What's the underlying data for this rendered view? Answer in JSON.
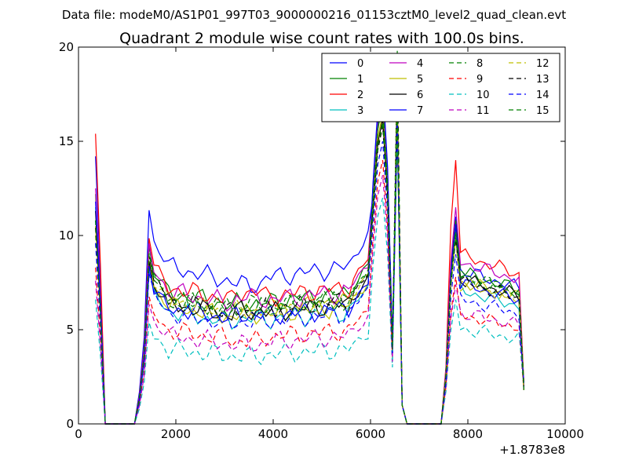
{
  "suptitle": "Data file: modeM0/AS1P01_997T03_9000000216_01153cztM0_level2_quad_clean.evt",
  "chart_data": {
    "type": "line",
    "title": "Quadrant 2 module wise count rates with 100.0s bins.",
    "xlabel": "",
    "ylabel": "",
    "xlim": [
      0,
      10000
    ],
    "ylim": [
      0,
      20
    ],
    "x_offset_label": "+1.8783e8",
    "xticks": [
      0,
      2000,
      4000,
      6000,
      8000,
      10000
    ],
    "xtick_labels": [
      "0",
      "2000",
      "4000",
      "6000",
      "8000",
      "10000"
    ],
    "yticks": [
      0,
      5,
      10,
      15,
      20
    ],
    "ytick_labels": [
      "0",
      "5",
      "10",
      "15",
      "20"
    ],
    "grid": false,
    "legend_position": "top-right",
    "x": [
      350,
      450,
      550,
      650,
      750,
      850,
      950,
      1050,
      1150,
      1250,
      1350,
      1450,
      1550,
      1650,
      1750,
      1850,
      1950,
      2050,
      2150,
      2250,
      2350,
      2450,
      2550,
      2650,
      2750,
      2850,
      2950,
      3050,
      3150,
      3250,
      3350,
      3450,
      3550,
      3650,
      3750,
      3850,
      3950,
      4050,
      4150,
      4250,
      4350,
      4450,
      4550,
      4650,
      4750,
      4850,
      4950,
      5050,
      5150,
      5250,
      5350,
      5450,
      5550,
      5650,
      5750,
      5850,
      5950,
      6050,
      6150,
      6250,
      6350,
      6450,
      6550,
      6650,
      6750,
      6850,
      6950,
      7050,
      7150,
      7250,
      7350,
      7450,
      7550,
      7650,
      7750,
      7850,
      7950,
      8050,
      8150,
      8250,
      8350,
      8450,
      8550,
      8650,
      8750,
      8850,
      8950,
      9050,
      9150
    ],
    "series": [
      {
        "name": "0",
        "color": "#0000ff",
        "dash": "solid",
        "base": 8.4,
        "start": 14.2,
        "stage2": 7.4,
        "peak": 17.2,
        "peak2": 16.4,
        "stage3": 11.0,
        "tail": 6.9
      },
      {
        "name": "1",
        "color": "#008000",
        "dash": "solid",
        "base": 7.0,
        "start": 12.2,
        "stage2": 6.4,
        "peak": 17.0,
        "peak2": 15.8,
        "stage3": 10.8,
        "tail": 6.8
      },
      {
        "name": "2",
        "color": "#ff0000",
        "dash": "solid",
        "base": 7.3,
        "start": 15.4,
        "stage2": 7.0,
        "peak": 17.6,
        "peak2": 17.2,
        "stage3": 14.0,
        "tail": 7.6
      },
      {
        "name": "3",
        "color": "#00bfbf",
        "dash": "solid",
        "base": 6.0,
        "start": 11.5,
        "stage2": 5.6,
        "peak": 17.8,
        "peak2": 16.8,
        "stage3": 10.4,
        "tail": 6.0
      },
      {
        "name": "4",
        "color": "#bf00bf",
        "dash": "solid",
        "base": 7.1,
        "start": 12.5,
        "stage2": 6.7,
        "peak": 18.0,
        "peak2": 16.6,
        "stage3": 11.5,
        "tail": 7.3
      },
      {
        "name": "5",
        "color": "#bfbf00",
        "dash": "solid",
        "base": 6.3,
        "start": 10.5,
        "stage2": 5.8,
        "peak": 16.5,
        "peak2": 15.4,
        "stage3": 10.2,
        "tail": 6.4
      },
      {
        "name": "6",
        "color": "#000000",
        "dash": "solid",
        "base": 6.4,
        "start": 11.3,
        "stage2": 6.0,
        "peak": 16.2,
        "peak2": 15.6,
        "stage3": 10.6,
        "tail": 6.5
      },
      {
        "name": "7",
        "color": "#0000ff",
        "dash": "solid",
        "base": 6.2,
        "start": 11.8,
        "stage2": 5.8,
        "peak": 18.2,
        "peak2": 16.2,
        "stage3": 10.6,
        "tail": 6.3
      },
      {
        "name": "8",
        "color": "#008000",
        "dash": "dashed",
        "base": 6.7,
        "start": 10.8,
        "stage2": 6.2,
        "peak": 17.0,
        "peak2": 19.8,
        "stage3": 10.2,
        "tail": 6.6
      },
      {
        "name": "9",
        "color": "#ff0000",
        "dash": "dashed",
        "base": 5.0,
        "start": 8.3,
        "stage2": 4.4,
        "peak": 14.0,
        "peak2": 18.0,
        "stage3": 7.8,
        "tail": 4.9
      },
      {
        "name": "10",
        "color": "#00bfbf",
        "dash": "dashed",
        "base": 4.0,
        "start": 6.6,
        "stage2": 3.6,
        "peak": 12.0,
        "peak2": 15.8,
        "stage3": 6.6,
        "tail": 4.3
      },
      {
        "name": "11",
        "color": "#bf00bf",
        "dash": "dashed",
        "base": 4.7,
        "start": 7.6,
        "stage2": 4.2,
        "peak": 13.2,
        "peak2": 17.0,
        "stage3": 7.4,
        "tail": 5.0
      },
      {
        "name": "12",
        "color": "#bfbf00",
        "dash": "dashed",
        "base": 6.6,
        "start": 10.0,
        "stage2": 6.0,
        "peak": 16.0,
        "peak2": 17.8,
        "stage3": 9.8,
        "tail": 6.3
      },
      {
        "name": "13",
        "color": "#000000",
        "dash": "dashed",
        "base": 6.6,
        "start": 10.4,
        "stage2": 6.0,
        "peak": 15.8,
        "peak2": 18.2,
        "stage3": 9.8,
        "tail": 6.4
      },
      {
        "name": "14",
        "color": "#0000ff",
        "dash": "dashed",
        "base": 5.9,
        "start": 9.6,
        "stage2": 5.4,
        "peak": 15.0,
        "peak2": 16.6,
        "stage3": 9.0,
        "tail": 5.6
      },
      {
        "name": "15",
        "color": "#008000",
        "dash": "dashed",
        "base": 6.7,
        "start": 10.8,
        "stage2": 6.3,
        "peak": 16.0,
        "peak2": 16.6,
        "stage3": 9.9,
        "tail": 6.7
      }
    ]
  }
}
